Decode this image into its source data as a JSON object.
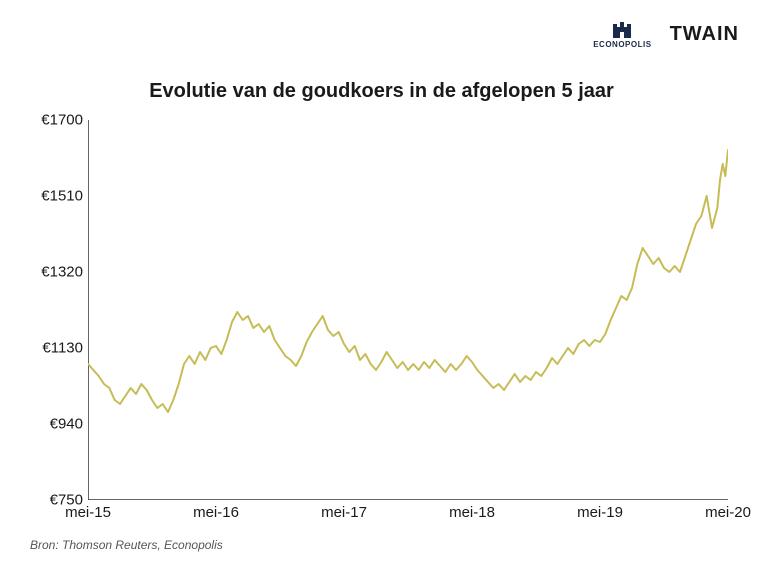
{
  "logos": {
    "econopolis": "ECONOPOLIS",
    "twain": "TWAIN"
  },
  "chart": {
    "type": "line",
    "title": "Evolutie van de goudkoers in de afgelopen 5 jaar",
    "title_fontsize": 20,
    "title_fontweight": 700,
    "background_color": "#ffffff",
    "line_color": "#c6bc56",
    "line_width": 2,
    "axis_color": "#333333",
    "tick_font_size": 15,
    "y_axis": {
      "min": 750,
      "max": 1700,
      "ticks": [
        750,
        940,
        1130,
        1320,
        1510,
        1700
      ],
      "tick_labels": [
        "€750",
        "€940",
        "€1130",
        "€1320",
        "€1510",
        "€1700"
      ]
    },
    "x_axis": {
      "min": 0,
      "max": 60,
      "ticks": [
        0,
        12,
        24,
        36,
        48,
        60
      ],
      "tick_labels": [
        "mei-15",
        "mei-16",
        "mei-17",
        "mei-18",
        "mei-19",
        "mei-20"
      ]
    },
    "series": [
      {
        "x": 0.0,
        "y": 1090
      },
      {
        "x": 0.5,
        "y": 1075
      },
      {
        "x": 1.0,
        "y": 1060
      },
      {
        "x": 1.5,
        "y": 1040
      },
      {
        "x": 2.0,
        "y": 1030
      },
      {
        "x": 2.5,
        "y": 1000
      },
      {
        "x": 3.0,
        "y": 990
      },
      {
        "x": 3.5,
        "y": 1010
      },
      {
        "x": 4.0,
        "y": 1030
      },
      {
        "x": 4.5,
        "y": 1015
      },
      {
        "x": 5.0,
        "y": 1040
      },
      {
        "x": 5.5,
        "y": 1025
      },
      {
        "x": 6.0,
        "y": 1000
      },
      {
        "x": 6.5,
        "y": 980
      },
      {
        "x": 7.0,
        "y": 990
      },
      {
        "x": 7.5,
        "y": 970
      },
      {
        "x": 8.0,
        "y": 1000
      },
      {
        "x": 8.5,
        "y": 1040
      },
      {
        "x": 9.0,
        "y": 1090
      },
      {
        "x": 9.5,
        "y": 1110
      },
      {
        "x": 10.0,
        "y": 1090
      },
      {
        "x": 10.5,
        "y": 1120
      },
      {
        "x": 11.0,
        "y": 1100
      },
      {
        "x": 11.5,
        "y": 1130
      },
      {
        "x": 12.0,
        "y": 1135
      },
      {
        "x": 12.5,
        "y": 1115
      },
      {
        "x": 13.0,
        "y": 1150
      },
      {
        "x": 13.5,
        "y": 1195
      },
      {
        "x": 14.0,
        "y": 1220
      },
      {
        "x": 14.5,
        "y": 1200
      },
      {
        "x": 15.0,
        "y": 1210
      },
      {
        "x": 15.5,
        "y": 1180
      },
      {
        "x": 16.0,
        "y": 1190
      },
      {
        "x": 16.5,
        "y": 1170
      },
      {
        "x": 17.0,
        "y": 1185
      },
      {
        "x": 17.5,
        "y": 1150
      },
      {
        "x": 18.0,
        "y": 1130
      },
      {
        "x": 18.5,
        "y": 1110
      },
      {
        "x": 19.0,
        "y": 1100
      },
      {
        "x": 19.5,
        "y": 1085
      },
      {
        "x": 20.0,
        "y": 1110
      },
      {
        "x": 20.5,
        "y": 1145
      },
      {
        "x": 21.0,
        "y": 1170
      },
      {
        "x": 21.5,
        "y": 1190
      },
      {
        "x": 22.0,
        "y": 1210
      },
      {
        "x": 22.5,
        "y": 1175
      },
      {
        "x": 23.0,
        "y": 1160
      },
      {
        "x": 23.5,
        "y": 1170
      },
      {
        "x": 24.0,
        "y": 1140
      },
      {
        "x": 24.5,
        "y": 1120
      },
      {
        "x": 25.0,
        "y": 1135
      },
      {
        "x": 25.5,
        "y": 1100
      },
      {
        "x": 26.0,
        "y": 1115
      },
      {
        "x": 26.5,
        "y": 1090
      },
      {
        "x": 27.0,
        "y": 1075
      },
      {
        "x": 27.5,
        "y": 1095
      },
      {
        "x": 28.0,
        "y": 1120
      },
      {
        "x": 28.5,
        "y": 1100
      },
      {
        "x": 29.0,
        "y": 1080
      },
      {
        "x": 29.5,
        "y": 1095
      },
      {
        "x": 30.0,
        "y": 1075
      },
      {
        "x": 30.5,
        "y": 1090
      },
      {
        "x": 31.0,
        "y": 1075
      },
      {
        "x": 31.5,
        "y": 1095
      },
      {
        "x": 32.0,
        "y": 1080
      },
      {
        "x": 32.5,
        "y": 1100
      },
      {
        "x": 33.0,
        "y": 1085
      },
      {
        "x": 33.5,
        "y": 1070
      },
      {
        "x": 34.0,
        "y": 1090
      },
      {
        "x": 34.5,
        "y": 1075
      },
      {
        "x": 35.0,
        "y": 1090
      },
      {
        "x": 35.5,
        "y": 1110
      },
      {
        "x": 36.0,
        "y": 1095
      },
      {
        "x": 36.5,
        "y": 1075
      },
      {
        "x": 37.0,
        "y": 1060
      },
      {
        "x": 37.5,
        "y": 1045
      },
      {
        "x": 38.0,
        "y": 1030
      },
      {
        "x": 38.5,
        "y": 1040
      },
      {
        "x": 39.0,
        "y": 1025
      },
      {
        "x": 39.5,
        "y": 1045
      },
      {
        "x": 40.0,
        "y": 1065
      },
      {
        "x": 40.5,
        "y": 1045
      },
      {
        "x": 41.0,
        "y": 1060
      },
      {
        "x": 41.5,
        "y": 1050
      },
      {
        "x": 42.0,
        "y": 1070
      },
      {
        "x": 42.5,
        "y": 1060
      },
      {
        "x": 43.0,
        "y": 1080
      },
      {
        "x": 43.5,
        "y": 1105
      },
      {
        "x": 44.0,
        "y": 1090
      },
      {
        "x": 44.5,
        "y": 1110
      },
      {
        "x": 45.0,
        "y": 1130
      },
      {
        "x": 45.5,
        "y": 1115
      },
      {
        "x": 46.0,
        "y": 1140
      },
      {
        "x": 46.5,
        "y": 1150
      },
      {
        "x": 47.0,
        "y": 1135
      },
      {
        "x": 47.5,
        "y": 1150
      },
      {
        "x": 48.0,
        "y": 1145
      },
      {
        "x": 48.5,
        "y": 1165
      },
      {
        "x": 49.0,
        "y": 1200
      },
      {
        "x": 49.5,
        "y": 1230
      },
      {
        "x": 50.0,
        "y": 1260
      },
      {
        "x": 50.5,
        "y": 1250
      },
      {
        "x": 51.0,
        "y": 1280
      },
      {
        "x": 51.5,
        "y": 1340
      },
      {
        "x": 52.0,
        "y": 1380
      },
      {
        "x": 52.5,
        "y": 1360
      },
      {
        "x": 53.0,
        "y": 1340
      },
      {
        "x": 53.5,
        "y": 1355
      },
      {
        "x": 54.0,
        "y": 1330
      },
      {
        "x": 54.5,
        "y": 1320
      },
      {
        "x": 55.0,
        "y": 1335
      },
      {
        "x": 55.5,
        "y": 1320
      },
      {
        "x": 56.0,
        "y": 1360
      },
      {
        "x": 56.5,
        "y": 1400
      },
      {
        "x": 57.0,
        "y": 1440
      },
      {
        "x": 57.5,
        "y": 1460
      },
      {
        "x": 58.0,
        "y": 1510
      },
      {
        "x": 58.5,
        "y": 1430
      },
      {
        "x": 59.0,
        "y": 1480
      },
      {
        "x": 59.25,
        "y": 1550
      },
      {
        "x": 59.5,
        "y": 1590
      },
      {
        "x": 59.75,
        "y": 1560
      },
      {
        "x": 60.0,
        "y": 1625
      }
    ]
  },
  "source": "Bron: Thomson Reuters, Econopolis"
}
